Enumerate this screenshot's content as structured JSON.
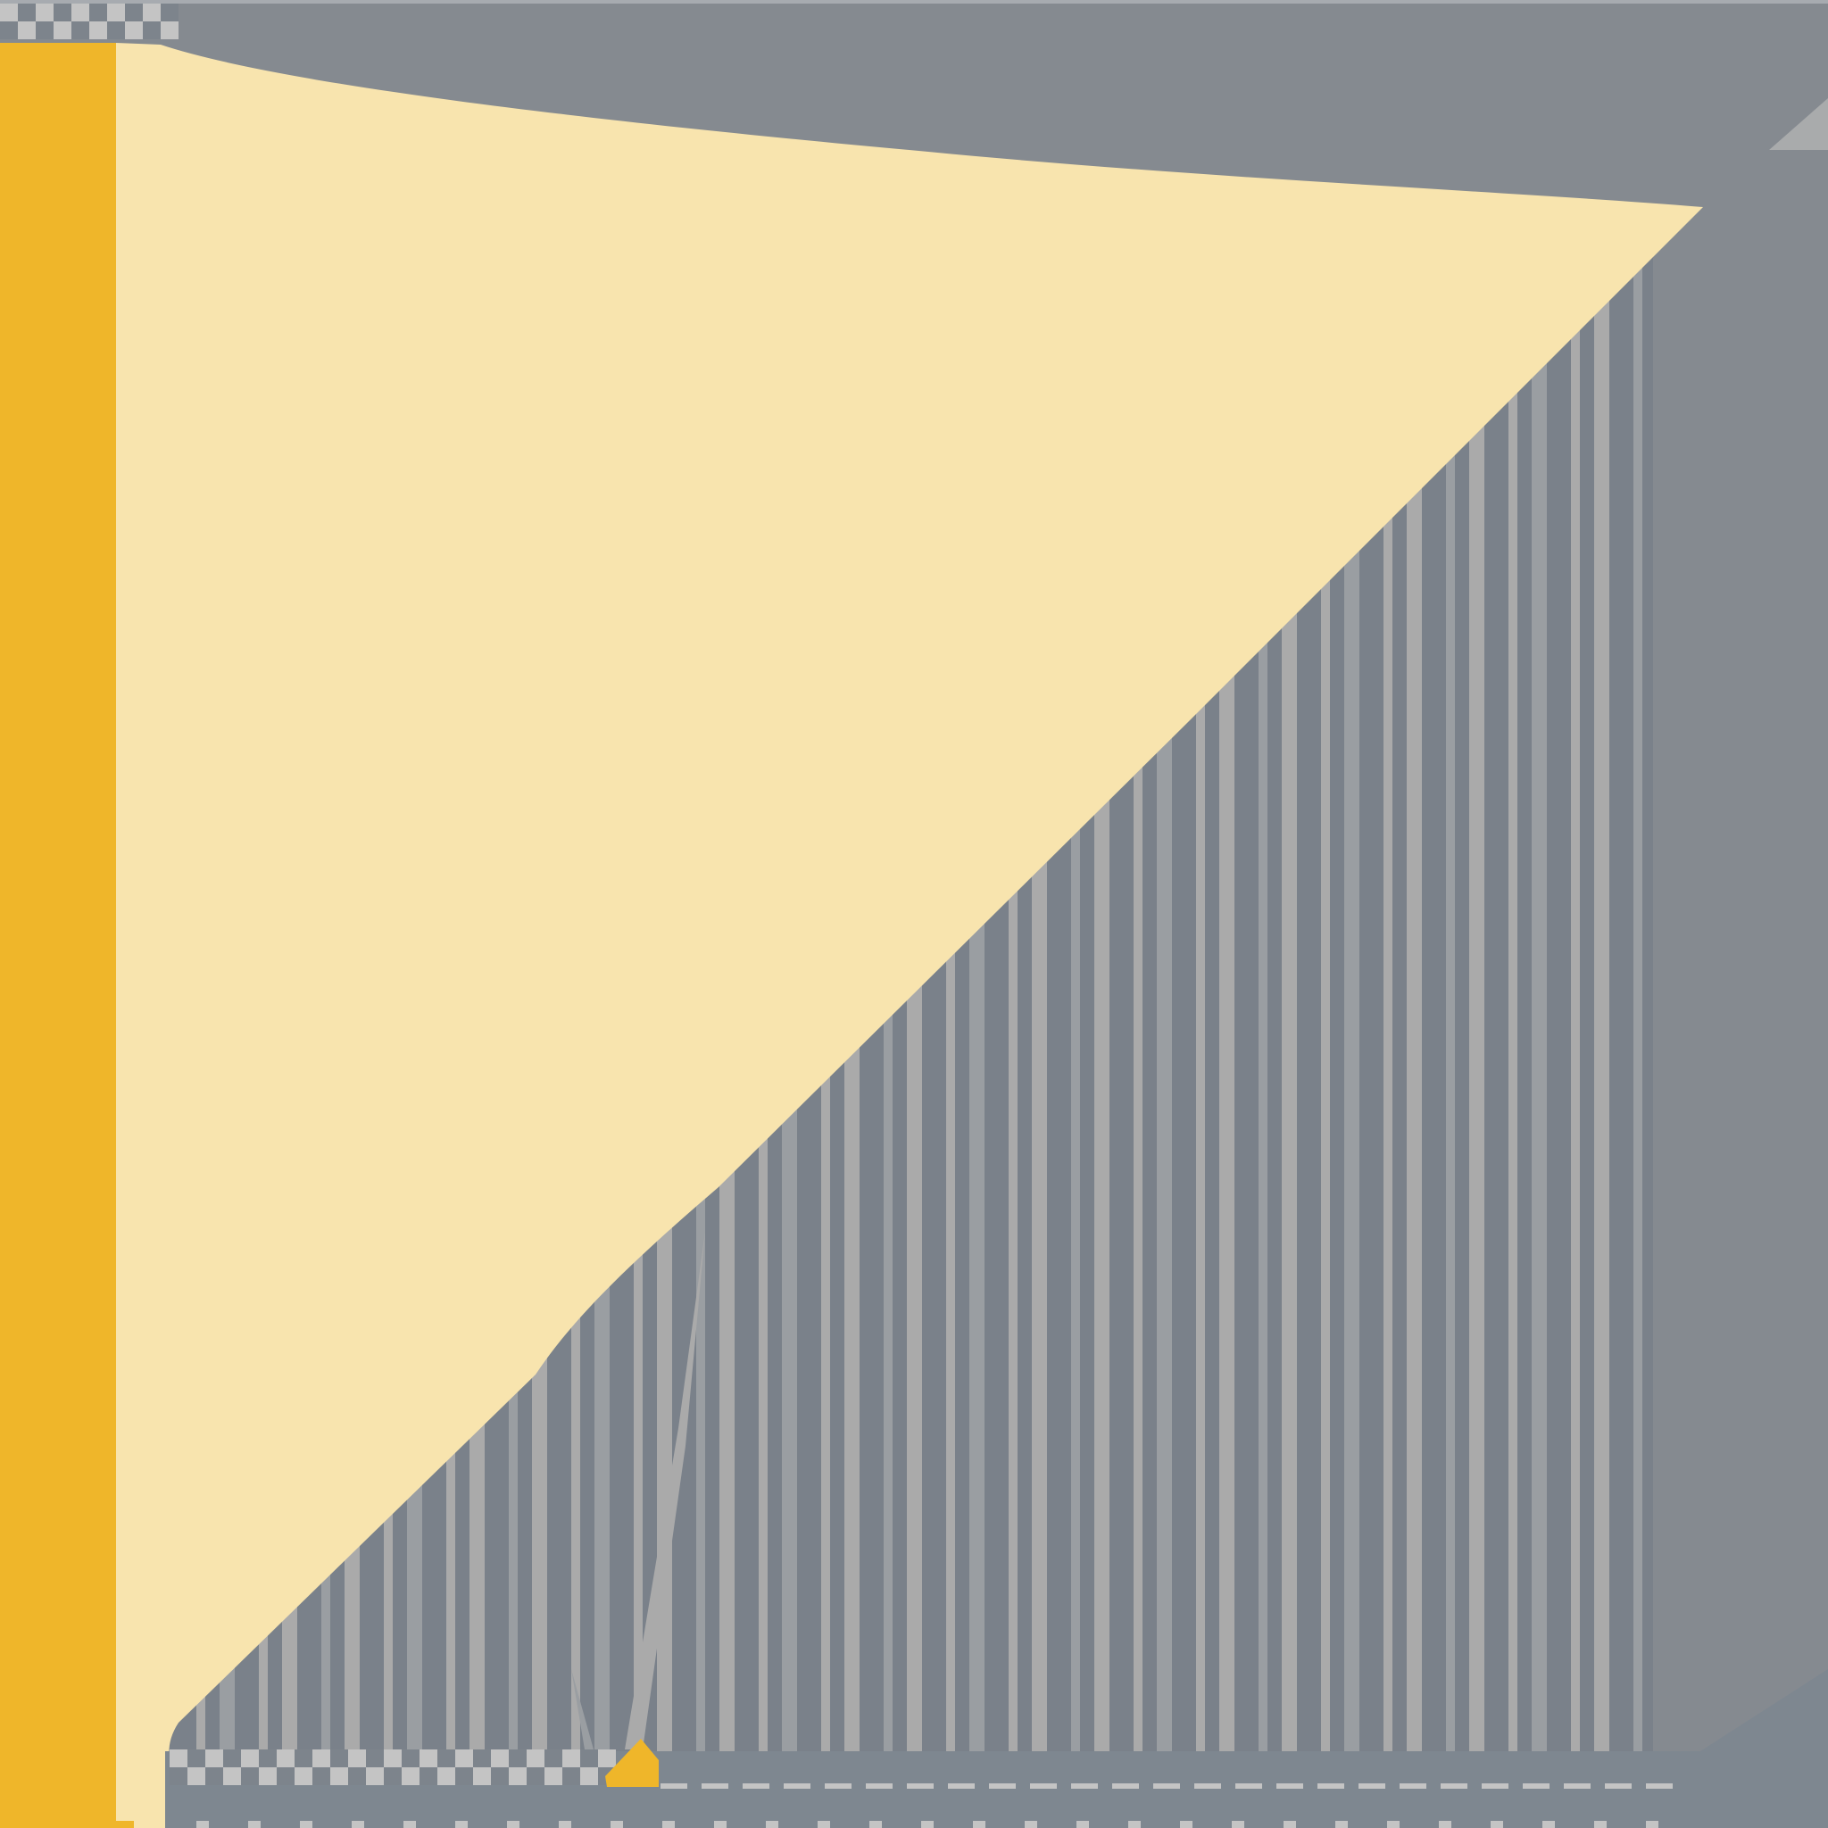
{
  "colors": {
    "background": "#858A90",
    "top_line": "#A7ABB0",
    "bar_dark": "#7A818A",
    "bar_light": "#AAAAAA",
    "bar_mid": "#9A9EA2",
    "shape_fill": "#F8E4AE",
    "accent_strip": "#EFB62A",
    "check_light": "#C4C4C4",
    "check_dark": "#7D848C",
    "base_strip": "#7E8790",
    "corner_triangle": "#A9ABAC",
    "marker": "#EFB62A"
  },
  "icons": {
    "marker": "triangle-marker-icon",
    "corner": "corner-triangle-icon"
  }
}
